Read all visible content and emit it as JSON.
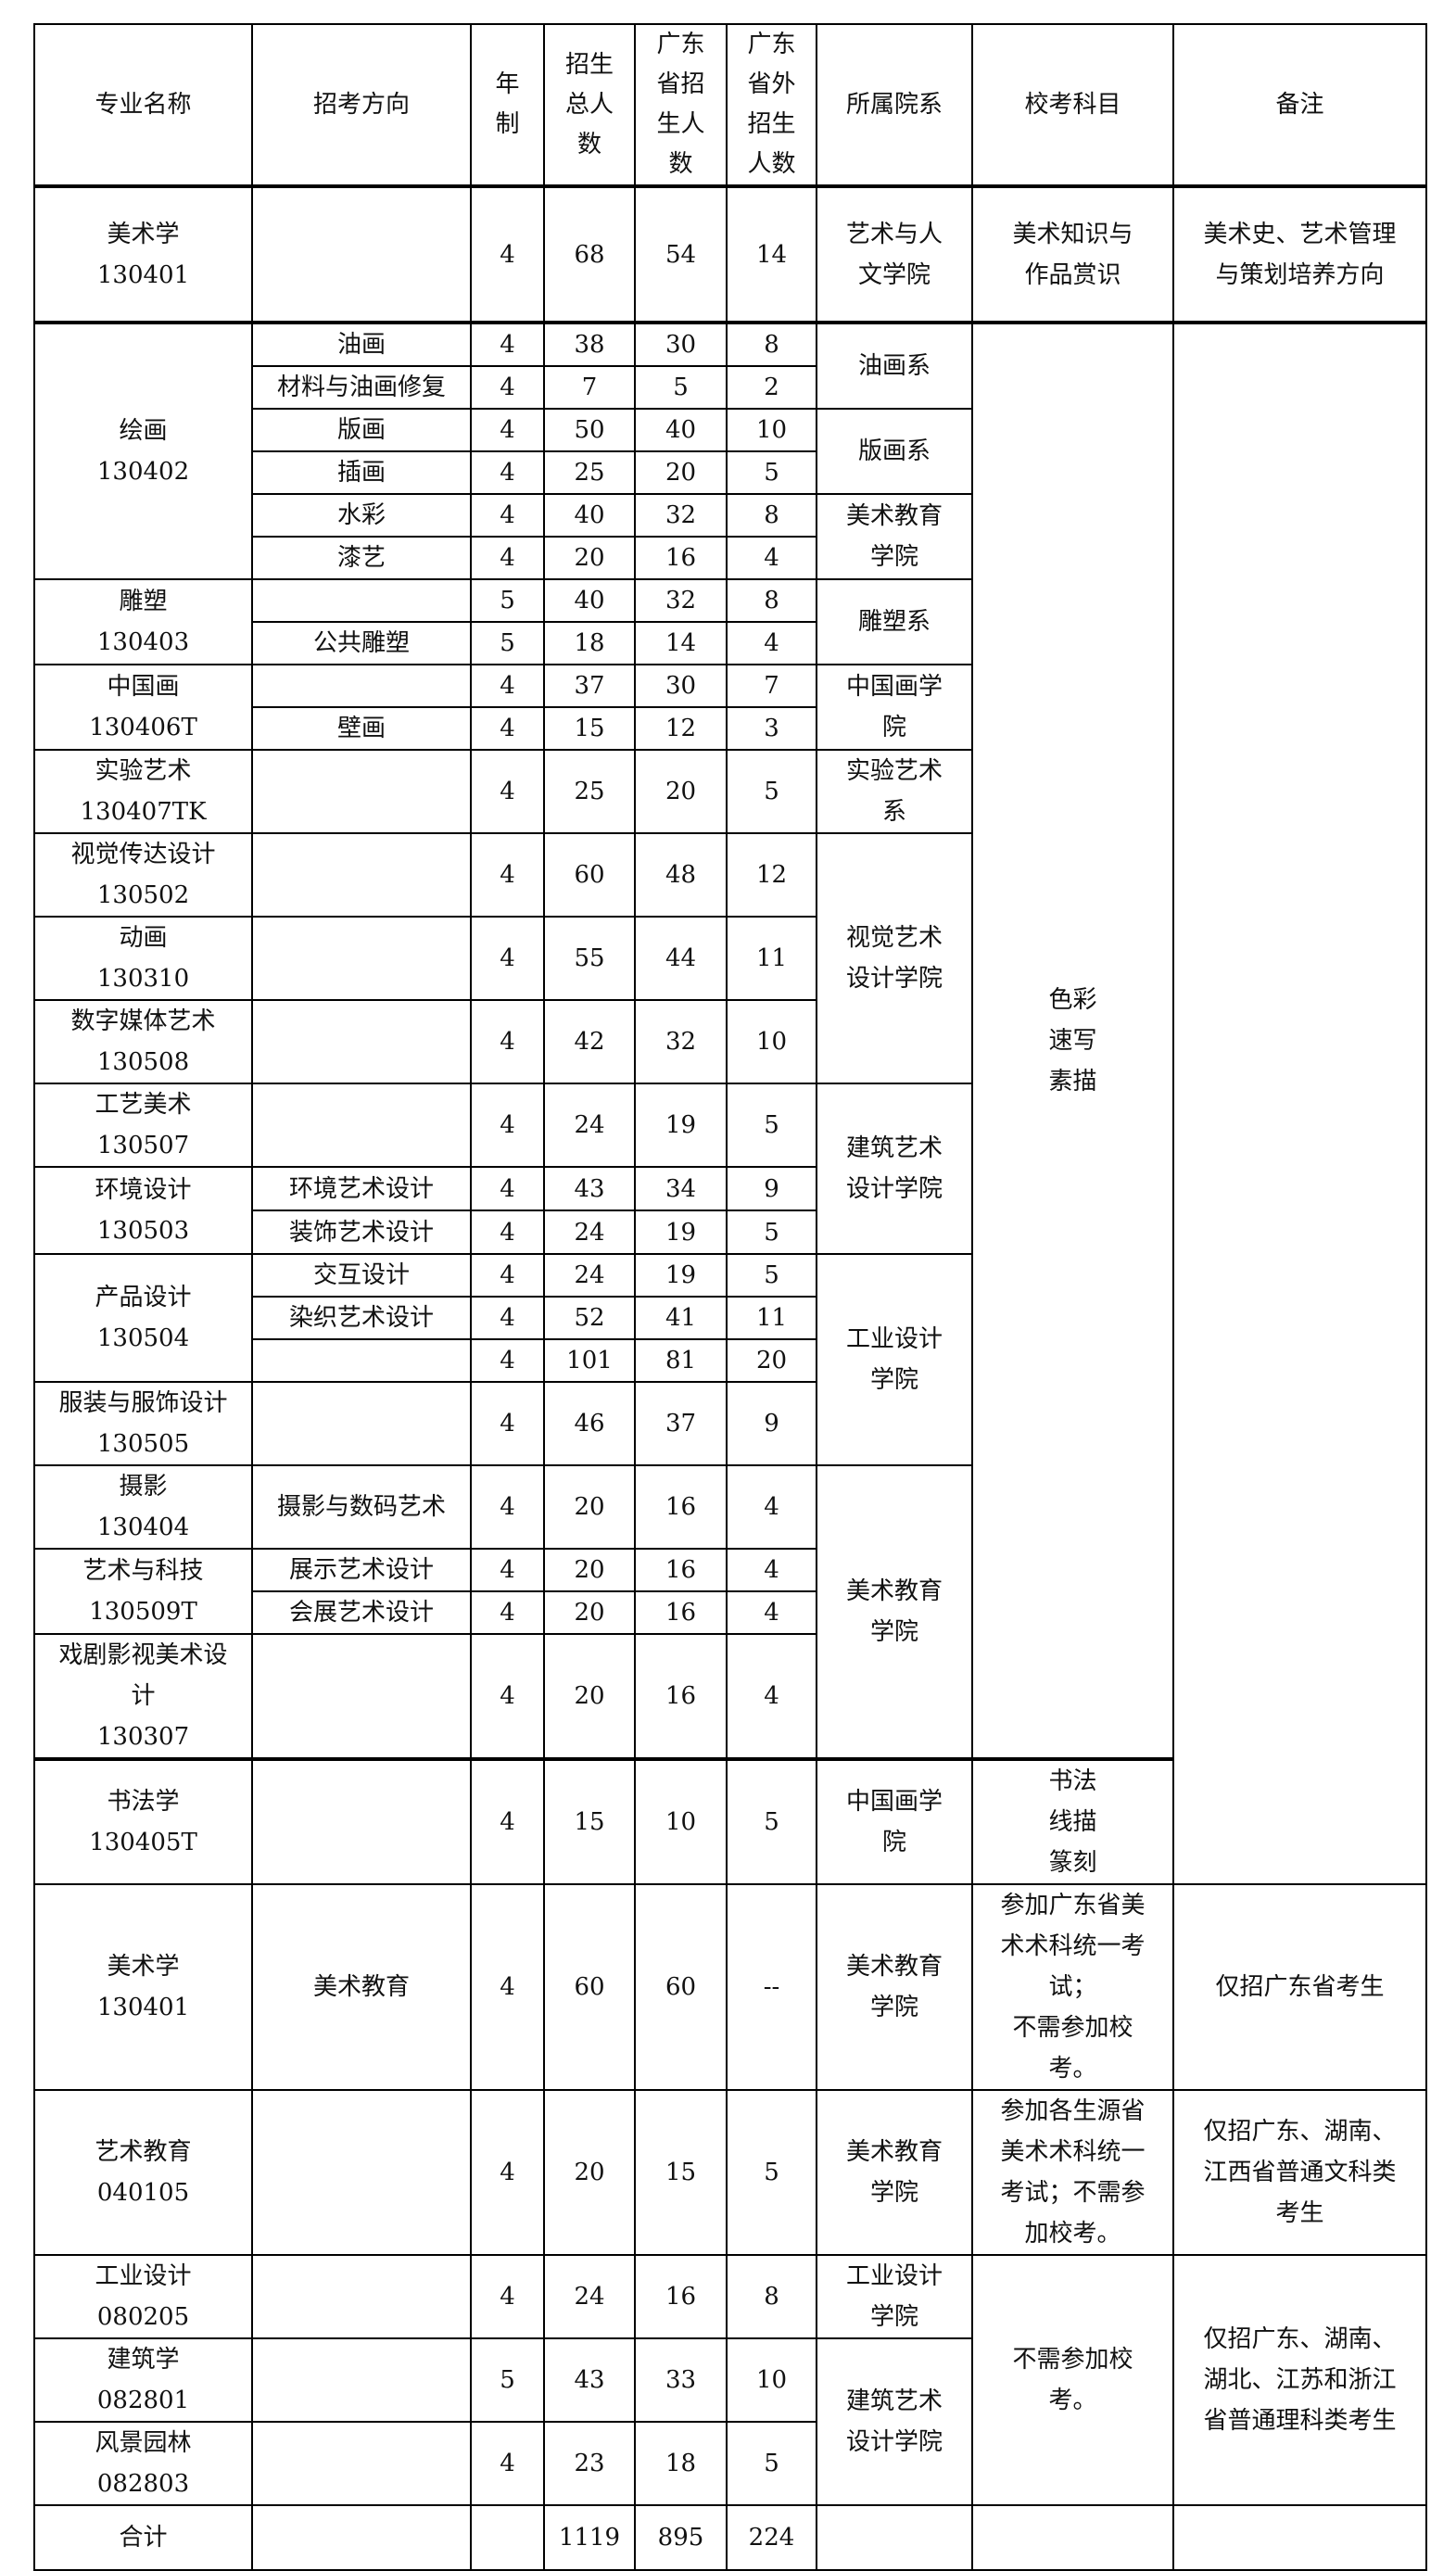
{
  "headers": [
    "专业名称",
    "招考方向",
    "年\n制",
    "招生\n总人\n数",
    "广东\n省招\n生人\n数",
    "广东\n省外\n招生\n人数",
    "所属院系",
    "校考科目",
    "备注"
  ],
  "rows": [
    {
      "major": "美术学",
      "code": "130401",
      "direction": "",
      "years": "4",
      "total": "68",
      "gd": "54",
      "out": "14",
      "dept": "艺术与人\n文学院",
      "exam": "美术知识与\n作品赏识",
      "note": "美术史、艺术管理\n与策划培养方向"
    },
    {
      "major": "绘画",
      "code": "130402",
      "direction": "油画",
      "years": "4",
      "total": "38",
      "gd": "30",
      "out": "8",
      "dept": "油画系",
      "exam": "色彩\n速写\n素描",
      "note": ""
    },
    {
      "direction": "材料与油画修复",
      "years": "4",
      "total": "7",
      "gd": "5",
      "out": "2"
    },
    {
      "direction": "版画",
      "years": "4",
      "total": "50",
      "gd": "40",
      "out": "10",
      "dept": "版画系"
    },
    {
      "direction": "插画",
      "years": "4",
      "total": "25",
      "gd": "20",
      "out": "5"
    },
    {
      "direction": "水彩",
      "years": "4",
      "total": "40",
      "gd": "32",
      "out": "8",
      "dept": "美术教育\n学院"
    },
    {
      "direction": "漆艺",
      "years": "4",
      "total": "20",
      "gd": "16",
      "out": "4"
    },
    {
      "major": "雕塑",
      "code": "130403",
      "direction": "",
      "years": "5",
      "total": "40",
      "gd": "32",
      "out": "8",
      "dept": "雕塑系"
    },
    {
      "direction": "公共雕塑",
      "years": "5",
      "total": "18",
      "gd": "14",
      "out": "4"
    },
    {
      "major": "中国画",
      "code": "130406T",
      "direction": "",
      "years": "4",
      "total": "37",
      "gd": "30",
      "out": "7",
      "dept": "中国画学\n院"
    },
    {
      "direction": "壁画",
      "years": "4",
      "total": "15",
      "gd": "12",
      "out": "3"
    },
    {
      "major": "实验艺术",
      "code": "130407TK",
      "direction": "",
      "years": "4",
      "total": "25",
      "gd": "20",
      "out": "5",
      "dept": "实验艺术\n系"
    },
    {
      "major": "视觉传达设计",
      "code": "130502",
      "direction": "",
      "years": "4",
      "total": "60",
      "gd": "48",
      "out": "12",
      "dept": "视觉艺术\n设计学院"
    },
    {
      "major": "动画",
      "code": "130310",
      "direction": "",
      "years": "4",
      "total": "55",
      "gd": "44",
      "out": "11"
    },
    {
      "major": "数字媒体艺术",
      "code": "130508",
      "direction": "",
      "years": "4",
      "total": "42",
      "gd": "32",
      "out": "10"
    },
    {
      "major": "工艺美术",
      "code": "130507",
      "direction": "",
      "years": "4",
      "total": "24",
      "gd": "19",
      "out": "5",
      "dept": "建筑艺术\n设计学院"
    },
    {
      "major": "环境设计",
      "code": "130503",
      "direction": "环境艺术设计",
      "years": "4",
      "total": "43",
      "gd": "34",
      "out": "9"
    },
    {
      "direction": "装饰艺术设计",
      "years": "4",
      "total": "24",
      "gd": "19",
      "out": "5"
    },
    {
      "major": "产品设计",
      "code": "130504",
      "direction": "交互设计",
      "years": "4",
      "total": "24",
      "gd": "19",
      "out": "5",
      "dept": "工业设计\n学院"
    },
    {
      "direction": "染织艺术设计",
      "years": "4",
      "total": "52",
      "gd": "41",
      "out": "11"
    },
    {
      "direction": "",
      "years": "4",
      "total": "101",
      "gd": "81",
      "out": "20"
    },
    {
      "major": "服装与服饰设计",
      "code": "130505",
      "direction": "",
      "years": "4",
      "total": "46",
      "gd": "37",
      "out": "9"
    },
    {
      "major": "摄影",
      "code": "130404",
      "direction": "摄影与数码艺术",
      "years": "4",
      "total": "20",
      "gd": "16",
      "out": "4",
      "dept": "美术教育\n学院"
    },
    {
      "major": "艺术与科技",
      "code": "130509T",
      "direction": "展示艺术设计",
      "years": "4",
      "total": "20",
      "gd": "16",
      "out": "4"
    },
    {
      "direction": "会展艺术设计",
      "years": "4",
      "total": "20",
      "gd": "16",
      "out": "4"
    },
    {
      "major": "戏剧影视美术设\n计",
      "code": "130307",
      "direction": "",
      "years": "4",
      "total": "20",
      "gd": "16",
      "out": "4"
    },
    {
      "major": "书法学",
      "code": "130405T",
      "direction": "",
      "years": "4",
      "total": "15",
      "gd": "10",
      "out": "5",
      "dept": "中国画学\n院",
      "exam": "书法\n线描\n篆刻"
    },
    {
      "major": "美术学",
      "code": "130401",
      "direction": "美术教育",
      "years": "4",
      "total": "60",
      "gd": "60",
      "out": "--",
      "dept": "美术教育\n学院",
      "exam": "参加广东省美\n术术科统一考\n试；\n不需参加校\n考。",
      "note": "仅招广东省考生"
    },
    {
      "major": "艺术教育",
      "code": "040105",
      "direction": "",
      "years": "4",
      "total": "20",
      "gd": "15",
      "out": "5",
      "dept": "美术教育\n学院",
      "exam": "参加各生源省\n美术术科统一\n考试；不需参\n加校考。",
      "note": "仅招广东、湖南、\n江西省普通文科类\n考生"
    },
    {
      "major": "工业设计",
      "code": "080205",
      "direction": "",
      "years": "4",
      "total": "24",
      "gd": "16",
      "out": "8",
      "dept": "工业设计\n学院",
      "exam": "不需参加校\n考。",
      "note": "仅招广东、湖南、\n湖北、江苏和浙江\n省普通理科类考生"
    },
    {
      "major": "建筑学",
      "code": "082801",
      "direction": "",
      "years": "5",
      "total": "43",
      "gd": "33",
      "out": "10",
      "dept": "建筑艺术\n设计学院"
    },
    {
      "major": "风景园林",
      "code": "082803",
      "direction": "",
      "years": "4",
      "total": "23",
      "gd": "18",
      "out": "5"
    }
  ],
  "total_row": {
    "label": "合计",
    "direction": "",
    "years": "",
    "total": "1119",
    "gd": "895",
    "out": "224",
    "dept": "",
    "exam": "",
    "note": ""
  }
}
